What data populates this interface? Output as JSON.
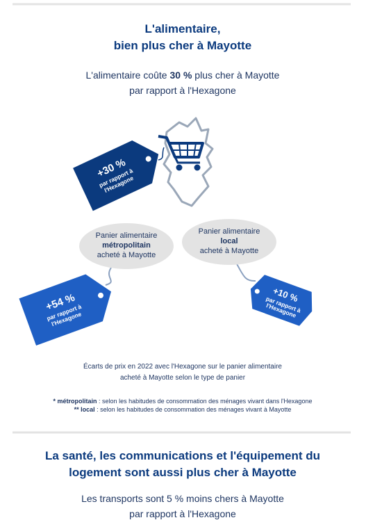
{
  "section1": {
    "title": [
      "L'alimentaire,",
      "bien plus cher à Mayotte"
    ],
    "subtitle": {
      "before": "L'alimentaire coûte ",
      "bold": "30 %",
      "after": " plus cher à Mayotte",
      "line2": "par rapport à l'Hexagone"
    },
    "main_tag": {
      "value": "+30 %",
      "line1": "par rapport à",
      "line2": "l'Hexagone"
    },
    "baskets": [
      {
        "line1": "Panier alimentaire",
        "bold": "métropolitain",
        "line3": "acheté à Mayotte",
        "tag": {
          "value": "+54 %",
          "line1": "par rapport à",
          "line2": "l'Hexagone"
        }
      },
      {
        "line1": "Panier alimentaire",
        "bold": "local",
        "line3": "acheté à Mayotte",
        "tag": {
          "value": "+10 %",
          "line1": "par rapport à",
          "line2": "l'Hexagone"
        }
      }
    ],
    "caption": [
      "Écarts de prix en 2022 avec l'Hexagone sur le panier alimentaire",
      "acheté à Mayotte selon le type de panier"
    ],
    "footnotes": [
      {
        "term": "* métropolitain",
        "text": " : selon les habitudes de consommation des ménages vivant dans l'Hexagone"
      },
      {
        "term": "** local",
        "text": " : selon les habitudes de consommation des ménages vivant à Mayotte"
      }
    ]
  },
  "section2": {
    "title": [
      "La santé, les communications et l'équipement du",
      "logement sont aussi plus cher à Mayotte"
    ],
    "subtitle": [
      "Les transports sont 5 % moins chers à Mayotte",
      "par rapport à l'Hexagone"
    ]
  }
}
